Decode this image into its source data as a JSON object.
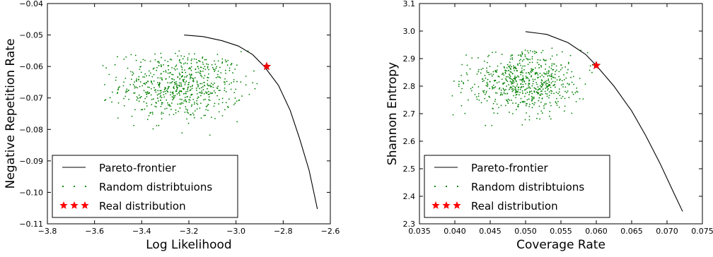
{
  "chart_data": [
    {
      "type": "scatter",
      "xlabel": "Log Likelihood",
      "ylabel": "Negative Repetition Rate",
      "xlim": [
        -3.8,
        -2.6
      ],
      "ylim": [
        -0.11,
        -0.04
      ],
      "xticks": [
        -3.8,
        -3.6,
        -3.4,
        -3.2,
        -3.0,
        -2.8,
        -2.6
      ],
      "xtick_labels": [
        "−3.8",
        "−3.6",
        "−3.4",
        "−3.2",
        "−3.0",
        "−2.8",
        "−2.6"
      ],
      "yticks": [
        -0.11,
        -0.1,
        -0.09,
        -0.08,
        -0.07,
        -0.06,
        -0.05,
        -0.04
      ],
      "ytick_labels": [
        "−0.11",
        "−0.10",
        "−0.09",
        "−0.08",
        "−0.07",
        "−0.06",
        "−0.05",
        "−0.04"
      ],
      "grid": false,
      "legend_position": "bottom-left",
      "legend": [
        "Pareto-frontier",
        "Random distribtuions",
        "Real distribution"
      ],
      "series": [
        {
          "name": "Pareto-frontier",
          "kind": "line",
          "color": "#000000",
          "points": [
            [
              -3.22,
              -0.05
            ],
            [
              -3.14,
              -0.0505
            ],
            [
              -3.06,
              -0.0518
            ],
            [
              -2.99,
              -0.0535
            ],
            [
              -2.93,
              -0.0562
            ],
            [
              -2.88,
              -0.06
            ],
            [
              -2.82,
              -0.066
            ],
            [
              -2.77,
              -0.074
            ],
            [
              -2.73,
              -0.083
            ],
            [
              -2.69,
              -0.093
            ],
            [
              -2.67,
              -0.1
            ],
            [
              -2.655,
              -0.1053
            ]
          ]
        },
        {
          "name": "Random distribtuions",
          "kind": "scatter",
          "color": "#008000",
          "cloud": {
            "count": 650,
            "x_mean": -3.23,
            "x_sd": 0.13,
            "y_mean": -0.066,
            "y_sd": 0.0055,
            "x_range": [
              -3.62,
              -2.9
            ],
            "y_range": [
              -0.087,
              -0.055
            ]
          }
        },
        {
          "name": "Real distribution",
          "kind": "marker",
          "marker": "star",
          "color": "#ff0000",
          "points": [
            [
              -2.87,
              -0.06
            ]
          ]
        }
      ]
    },
    {
      "type": "scatter",
      "xlabel": "Coverage Rate",
      "ylabel": "Shannon Entropy",
      "xlim": [
        0.035,
        0.075
      ],
      "ylim": [
        2.3,
        3.1
      ],
      "xticks": [
        0.035,
        0.04,
        0.045,
        0.05,
        0.055,
        0.06,
        0.065,
        0.07,
        0.075
      ],
      "xtick_labels": [
        "0.035",
        "0.040",
        "0.045",
        "0.050",
        "0.055",
        "0.060",
        "0.065",
        "0.070",
        "0.075"
      ],
      "yticks": [
        2.3,
        2.4,
        2.5,
        2.6,
        2.7,
        2.8,
        2.9,
        3.0,
        3.1
      ],
      "ytick_labels": [
        "2.3",
        "2.4",
        "2.5",
        "2.6",
        "2.7",
        "2.8",
        "2.9",
        "3.0",
        "3.1"
      ],
      "grid": false,
      "legend_position": "bottom-left",
      "legend": [
        "Pareto-frontier",
        "Random distribtuions",
        "Real distribution"
      ],
      "series": [
        {
          "name": "Pareto-frontier",
          "kind": "line",
          "color": "#000000",
          "points": [
            [
              0.05,
              2.998
            ],
            [
              0.053,
              2.988
            ],
            [
              0.056,
              2.958
            ],
            [
              0.0585,
              2.915
            ],
            [
              0.06,
              2.875
            ],
            [
              0.0625,
              2.8
            ],
            [
              0.065,
              2.71
            ],
            [
              0.067,
              2.62
            ],
            [
              0.069,
              2.52
            ],
            [
              0.071,
              2.41
            ],
            [
              0.0722,
              2.345
            ]
          ]
        },
        {
          "name": "Random distribtuions",
          "kind": "scatter",
          "color": "#008000",
          "cloud": {
            "count": 650,
            "x_mean": 0.05,
            "x_sd": 0.004,
            "y_mean": 2.815,
            "y_sd": 0.055,
            "x_range": [
              0.0395,
              0.0597
            ],
            "y_range": [
              2.58,
              2.94
            ]
          }
        },
        {
          "name": "Real distribution",
          "kind": "marker",
          "marker": "star",
          "color": "#ff0000",
          "points": [
            [
              0.06,
              2.875
            ]
          ]
        }
      ]
    }
  ]
}
